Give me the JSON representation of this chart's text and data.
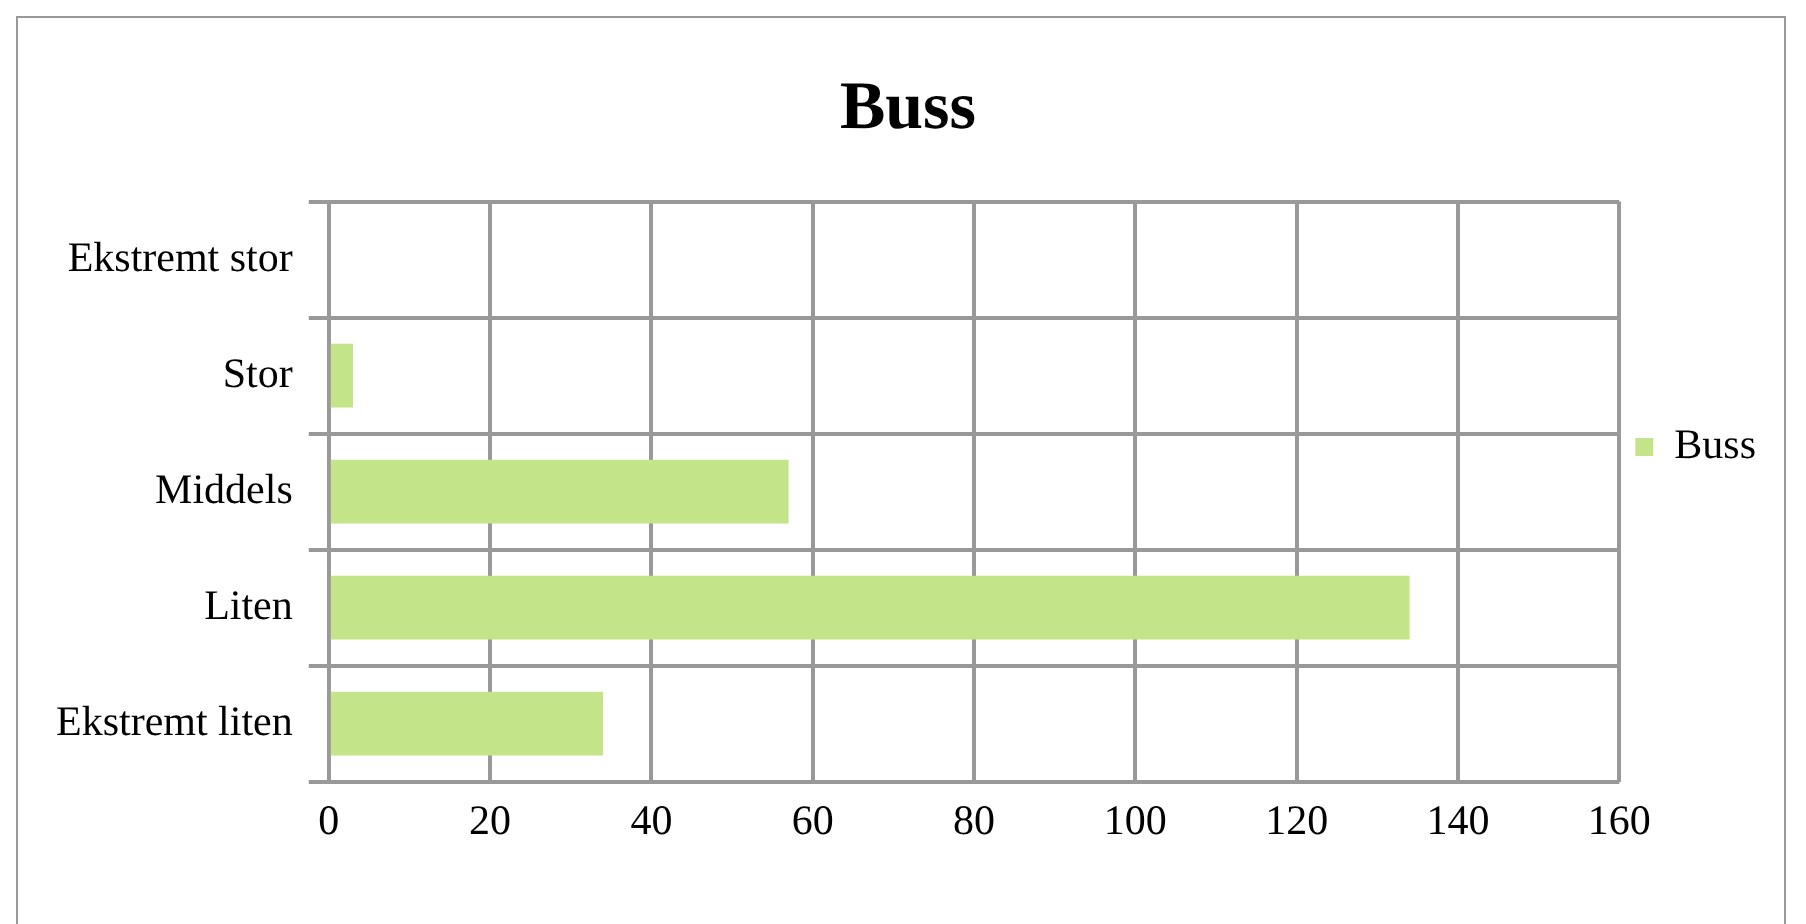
{
  "chart_data": {
    "type": "bar",
    "orientation": "horizontal",
    "title": "Buss",
    "categories": [
      "Ekstremt stor",
      "Stor",
      "Middels",
      "Liten",
      "Ekstremt liten"
    ],
    "series": [
      {
        "name": "Buss",
        "color": "#c4e48a",
        "values": [
          0,
          3,
          57,
          134,
          34
        ]
      }
    ],
    "xlim": [
      0,
      160
    ],
    "xticks": [
      0,
      20,
      40,
      60,
      80,
      100,
      120,
      140,
      160
    ],
    "grid": true,
    "legend": "right"
  }
}
